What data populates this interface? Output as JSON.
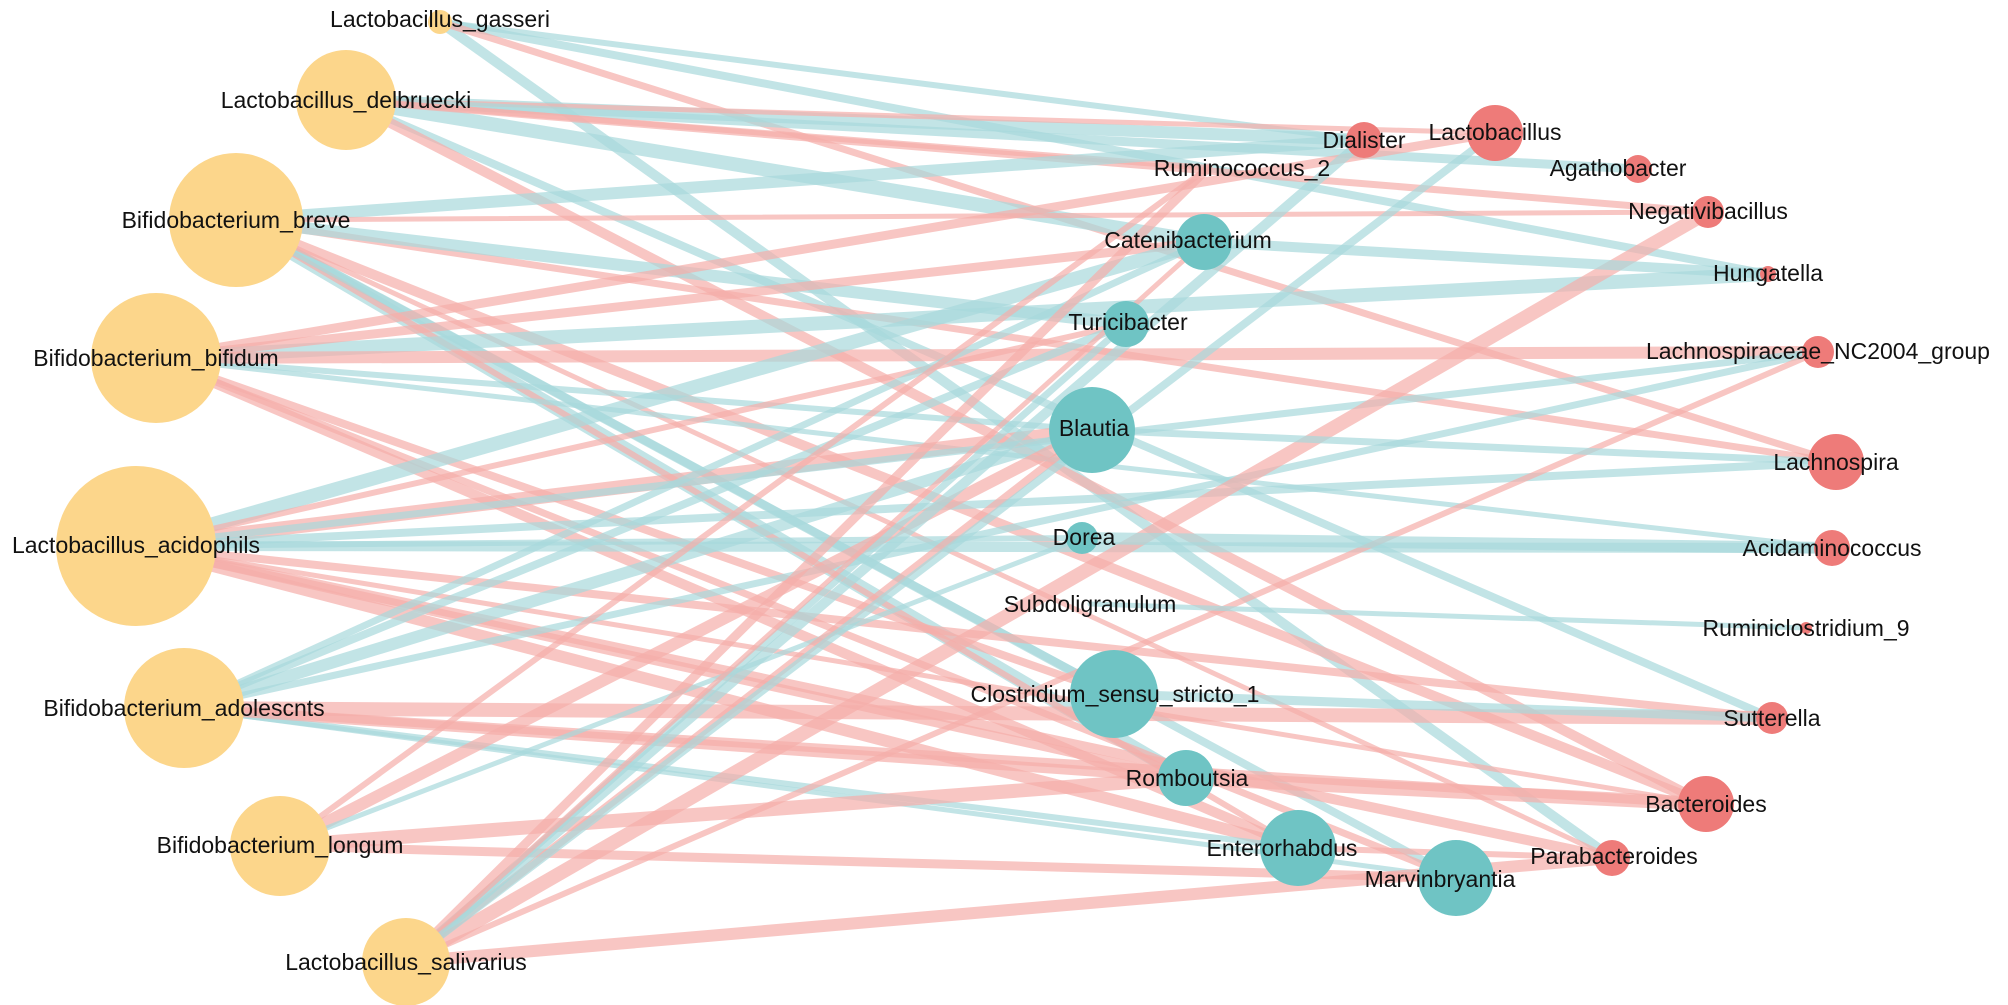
{
  "colors": {
    "probiotic": "#fcd68b",
    "teal": "#6fc4c4",
    "red": "#ee7b79",
    "edge_positive": "#a8d9db",
    "edge_negative": "#f5aeaa"
  },
  "nodes": [
    {
      "id": "Lactobacillus_gasseri",
      "label": "Lactobacillus_gasseri",
      "group": "probiotic"
    },
    {
      "id": "Lactobacillus_delbruecki",
      "label": "Lactobacillus_delbruecki",
      "group": "probiotic"
    },
    {
      "id": "Bifidobacterium_breve",
      "label": "Bifidobacterium_breve",
      "group": "probiotic"
    },
    {
      "id": "Bifidobacterium_bifidum",
      "label": "Bifidobacterium_bifidum",
      "group": "probiotic"
    },
    {
      "id": "Lactobacillus_acidophils",
      "label": "Lactobacillus_acidophils",
      "group": "probiotic"
    },
    {
      "id": "Bifidobacterium_adolescnts",
      "label": "Bifidobacterium_adolescnts",
      "group": "probiotic"
    },
    {
      "id": "Bifidobacterium_longum",
      "label": "Bifidobacterium_longum",
      "group": "probiotic"
    },
    {
      "id": "Lactobacillus_salivarius",
      "label": "Lactobacillus_salivarius",
      "group": "probiotic"
    },
    {
      "id": "Ruminococcus_2",
      "label": "Ruminococcus_2",
      "group": "teal"
    },
    {
      "id": "Catenibacterium",
      "label": "Catenibacterium",
      "group": "teal"
    },
    {
      "id": "Turicibacter",
      "label": "Turicibacter",
      "group": "teal"
    },
    {
      "id": "Blautia",
      "label": "Blautia",
      "group": "teal"
    },
    {
      "id": "Dorea",
      "label": "Dorea",
      "group": "teal"
    },
    {
      "id": "Subdoligranulum",
      "label": "Subdoligranulum",
      "group": "teal"
    },
    {
      "id": "Clostridium_sensu_stricto_1",
      "label": "Clostridium_sensu_stricto_1",
      "group": "teal"
    },
    {
      "id": "Romboutsia",
      "label": "Romboutsia",
      "group": "teal"
    },
    {
      "id": "Enterorhabdus",
      "label": "Enterorhabdus",
      "group": "teal"
    },
    {
      "id": "Marvinbryantia",
      "label": "Marvinbryantia",
      "group": "teal"
    },
    {
      "id": "Dialister",
      "label": "Dialister",
      "group": "red"
    },
    {
      "id": "Lactobacillus",
      "label": "Lactobacillus",
      "group": "red"
    },
    {
      "id": "Agathobacter",
      "label": "Agathobacter",
      "group": "red"
    },
    {
      "id": "Negativibacillus",
      "label": "Negativibacillus",
      "group": "red"
    },
    {
      "id": "Hungatella",
      "label": "Hungatella",
      "group": "red"
    },
    {
      "id": "Lachnospiraceae_NC2004_group",
      "label": "Lachnospiraceae_NC2004_group",
      "group": "red"
    },
    {
      "id": "Lachnospira",
      "label": "Lachnospira",
      "group": "red"
    },
    {
      "id": "Acidaminococcus",
      "label": "Acidaminococcus",
      "group": "red"
    },
    {
      "id": "Ruminiclostridium_9",
      "label": "Ruminiclostridium_9",
      "group": "red"
    },
    {
      "id": "Sutterella",
      "label": "Sutterella",
      "group": "red"
    },
    {
      "id": "Bacteroides",
      "label": "Bacteroides",
      "group": "red"
    },
    {
      "id": "Parabacteroides",
      "label": "Parabacteroides",
      "group": "red"
    }
  ],
  "edges": [
    {
      "source": "Lactobacillus_gasseri",
      "target": "Dialister",
      "sign": "positive"
    },
    {
      "source": "Lactobacillus_gasseri",
      "target": "Hungatella",
      "sign": "positive"
    },
    {
      "source": "Lactobacillus_gasseri",
      "target": "Parabacteroides",
      "sign": "positive"
    },
    {
      "source": "Lactobacillus_gasseri",
      "target": "Lachnospira",
      "sign": "negative"
    },
    {
      "source": "Lactobacillus_delbruecki",
      "target": "Dialister",
      "sign": "positive"
    },
    {
      "source": "Lactobacillus_delbruecki",
      "target": "Lactobacillus",
      "sign": "negative"
    },
    {
      "source": "Lactobacillus_delbruecki",
      "target": "Agathobacter",
      "sign": "positive"
    },
    {
      "source": "Lactobacillus_delbruecki",
      "target": "Catenibacterium",
      "sign": "positive"
    },
    {
      "source": "Lactobacillus_delbruecki",
      "target": "Ruminococcus_2",
      "sign": "negative"
    },
    {
      "source": "Lactobacillus_delbruecki",
      "target": "Sutterella",
      "sign": "positive"
    },
    {
      "source": "Lactobacillus_delbruecki",
      "target": "Bacteroides",
      "sign": "negative"
    },
    {
      "source": "Lactobacillus_delbruecki",
      "target": "Negativibacillus",
      "sign": "negative"
    },
    {
      "source": "Bifidobacterium_breve",
      "target": "Dialister",
      "sign": "positive"
    },
    {
      "source": "Bifidobacterium_breve",
      "target": "Negativibacillus",
      "sign": "negative"
    },
    {
      "source": "Bifidobacterium_breve",
      "target": "Clostridium_sensu_stricto_1",
      "sign": "positive"
    },
    {
      "source": "Bifidobacterium_breve",
      "target": "Romboutsia",
      "sign": "positive"
    },
    {
      "source": "Bifidobacterium_breve",
      "target": "Enterorhabdus",
      "sign": "negative"
    },
    {
      "source": "Bifidobacterium_breve",
      "target": "Marvinbryantia",
      "sign": "positive"
    },
    {
      "source": "Bifidobacterium_breve",
      "target": "Bacteroides",
      "sign": "negative"
    },
    {
      "source": "Bifidobacterium_breve",
      "target": "Lachnospira",
      "sign": "negative"
    },
    {
      "source": "Bifidobacterium_breve",
      "target": "Turicibacter",
      "sign": "positive"
    },
    {
      "source": "Bifidobacterium_breve",
      "target": "Parabacteroides",
      "sign": "negative"
    },
    {
      "source": "Bifidobacterium_bifidum",
      "target": "Lactobacillus",
      "sign": "negative"
    },
    {
      "source": "Bifidobacterium_bifidum",
      "target": "Hungatella",
      "sign": "positive"
    },
    {
      "source": "Bifidobacterium_bifidum",
      "target": "Blautia",
      "sign": "positive"
    },
    {
      "source": "Bifidobacterium_bifidum",
      "target": "Clostridium_sensu_stricto_1",
      "sign": "negative"
    },
    {
      "source": "Bifidobacterium_bifidum",
      "target": "Enterorhabdus",
      "sign": "negative"
    },
    {
      "source": "Bifidobacterium_bifidum",
      "target": "Marvinbryantia",
      "sign": "negative"
    },
    {
      "source": "Bifidobacterium_bifidum",
      "target": "Lachnospiraceae_NC2004_group",
      "sign": "negative"
    },
    {
      "source": "Bifidobacterium_bifidum",
      "target": "Acidaminococcus",
      "sign": "positive"
    },
    {
      "source": "Bifidobacterium_bifidum",
      "target": "Catenibacterium",
      "sign": "negative"
    },
    {
      "source": "Lactobacillus_acidophils",
      "target": "Blautia",
      "sign": "negative"
    },
    {
      "source": "Lactobacillus_acidophils",
      "target": "Dorea",
      "sign": "positive"
    },
    {
      "source": "Lactobacillus_acidophils",
      "target": "Lachnospira",
      "sign": "positive"
    },
    {
      "source": "Lactobacillus_acidophils",
      "target": "Acidaminococcus",
      "sign": "positive"
    },
    {
      "source": "Lactobacillus_acidophils",
      "target": "Lachnospiraceae_NC2004_group",
      "sign": "positive"
    },
    {
      "source": "Lactobacillus_acidophils",
      "target": "Enterorhabdus",
      "sign": "negative"
    },
    {
      "source": "Lactobacillus_acidophils",
      "target": "Bacteroides",
      "sign": "negative"
    },
    {
      "source": "Lactobacillus_acidophils",
      "target": "Romboutsia",
      "sign": "negative"
    },
    {
      "source": "Lactobacillus_acidophils",
      "target": "Catenibacterium",
      "sign": "positive"
    },
    {
      "source": "Lactobacillus_acidophils",
      "target": "Turicibacter",
      "sign": "negative"
    },
    {
      "source": "Lactobacillus_acidophils",
      "target": "Sutterella",
      "sign": "negative"
    },
    {
      "source": "Lactobacillus_acidophils",
      "target": "Parabacteroides",
      "sign": "negative"
    },
    {
      "source": "Bifidobacterium_adolescnts",
      "target": "Lachnospiraceae_NC2004_group",
      "sign": "positive"
    },
    {
      "source": "Bifidobacterium_adolescnts",
      "target": "Blautia",
      "sign": "positive"
    },
    {
      "source": "Bifidobacterium_adolescnts",
      "target": "Marvinbryantia",
      "sign": "positive"
    },
    {
      "source": "Bifidobacterium_adolescnts",
      "target": "Bacteroides",
      "sign": "negative"
    },
    {
      "source": "Bifidobacterium_adolescnts",
      "target": "Sutterella",
      "sign": "negative"
    },
    {
      "source": "Bifidobacterium_adolescnts",
      "target": "Enterorhabdus",
      "sign": "positive"
    },
    {
      "source": "Bifidobacterium_adolescnts",
      "target": "Turicibacter",
      "sign": "positive"
    },
    {
      "source": "Bifidobacterium_adolescnts",
      "target": "Romboutsia",
      "sign": "negative"
    },
    {
      "source": "Bifidobacterium_adolescnts",
      "target": "Catenibacterium",
      "sign": "positive"
    },
    {
      "source": "Bifidobacterium_longum",
      "target": "Blautia",
      "sign": "negative"
    },
    {
      "source": "Bifidobacterium_longum",
      "target": "Dorea",
      "sign": "positive"
    },
    {
      "source": "Bifidobacterium_longum",
      "target": "Marvinbryantia",
      "sign": "negative"
    },
    {
      "source": "Bifidobacterium_longum",
      "target": "Romboutsia",
      "sign": "negative"
    },
    {
      "source": "Bifidobacterium_longum",
      "target": "Ruminococcus_2",
      "sign": "negative"
    },
    {
      "source": "Lactobacillus_salivarius",
      "target": "Blautia",
      "sign": "negative"
    },
    {
      "source": "Lactobacillus_salivarius",
      "target": "Dialister",
      "sign": "positive"
    },
    {
      "source": "Lactobacillus_salivarius",
      "target": "Turicibacter",
      "sign": "positive"
    },
    {
      "source": "Lactobacillus_salivarius",
      "target": "Parabacteroides",
      "sign": "negative"
    },
    {
      "source": "Lactobacillus_salivarius",
      "target": "Catenibacterium",
      "sign": "negative"
    },
    {
      "source": "Lactobacillus_salivarius",
      "target": "Ruminococcus_2",
      "sign": "negative"
    },
    {
      "source": "Lactobacillus_salivarius",
      "target": "Negativibacillus",
      "sign": "negative"
    },
    {
      "source": "Lactobacillus_salivarius",
      "target": "Lachnospiraceae_NC2004_group",
      "sign": "negative"
    },
    {
      "source": "Lactobacillus_salivarius",
      "target": "Lactobacillus",
      "sign": "positive"
    },
    {
      "source": "Catenibacterium",
      "target": "Hungatella",
      "sign": "positive"
    },
    {
      "source": "Blautia",
      "target": "Lachnospira",
      "sign": "positive"
    },
    {
      "source": "Dorea",
      "target": "Acidaminococcus",
      "sign": "positive"
    },
    {
      "source": "Subdoligranulum",
      "target": "Ruminiclostridium_9",
      "sign": "positive"
    },
    {
      "source": "Clostridium_sensu_stricto_1",
      "target": "Sutterella",
      "sign": "positive"
    },
    {
      "source": "Romboutsia",
      "target": "Bacteroides",
      "sign": "negative"
    },
    {
      "source": "Enterorhabdus",
      "target": "Parabacteroides",
      "sign": "negative"
    }
  ]
}
